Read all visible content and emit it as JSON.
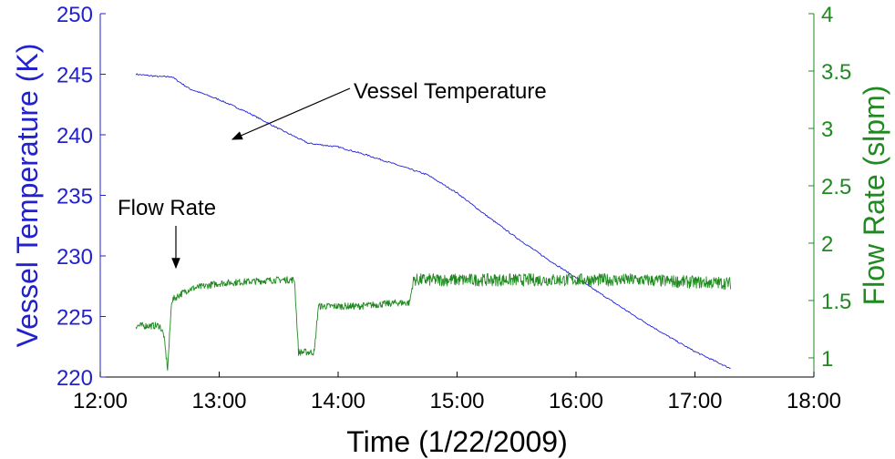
{
  "colors": {
    "temperature": "#1f1fd6",
    "flow": "#1f8a1f",
    "axis_left": "#2222cc",
    "axis_right": "#1f8a1f",
    "axis_bottom": "#000000"
  },
  "chart_data": {
    "type": "line",
    "xlabel": "Time (1/22/2009)",
    "ylabel_left": "Vessel Temperature (K)",
    "ylabel_right": "Flow Rate (slpm)",
    "xlim": [
      "12:00",
      "18:00"
    ],
    "ylim_left": [
      220,
      250
    ],
    "ylim_right": [
      0.833,
      4
    ],
    "x_ticks": [
      "12:00",
      "13:00",
      "14:00",
      "15:00",
      "16:00",
      "17:00",
      "18:00"
    ],
    "y_ticks_left": [
      "220",
      "225",
      "230",
      "235",
      "240",
      "245",
      "250"
    ],
    "y_ticks_right": [
      "1",
      "1.5",
      "2",
      "2.5",
      "3",
      "3.5",
      "4"
    ],
    "grid": false,
    "series": [
      {
        "name": "Vessel Temperature",
        "axis": "left",
        "x": [
          "12:18",
          "12:30",
          "12:36",
          "12:45",
          "13:00",
          "13:15",
          "13:30",
          "13:45",
          "14:00",
          "14:15",
          "14:30",
          "14:45",
          "15:00",
          "15:15",
          "15:30",
          "15:45",
          "16:00",
          "16:15",
          "16:30",
          "16:45",
          "17:00",
          "17:18"
        ],
        "values": [
          245.0,
          244.8,
          244.8,
          243.8,
          242.9,
          241.8,
          240.5,
          239.3,
          239.0,
          238.3,
          237.5,
          236.7,
          235.2,
          233.3,
          231.5,
          229.8,
          228.2,
          226.6,
          225.0,
          223.5,
          222.1,
          220.7
        ]
      },
      {
        "name": "Flow Rate",
        "axis": "right",
        "x": [
          "12:18",
          "12:30",
          "12:32",
          "12:34",
          "12:36",
          "12:40",
          "12:45",
          "13:00",
          "13:30",
          "13:38",
          "13:40",
          "13:48",
          "13:50",
          "14:10",
          "14:30",
          "14:36",
          "14:38",
          "15:00",
          "15:30",
          "16:00",
          "16:30",
          "17:00",
          "17:18"
        ],
        "values": [
          1.28,
          1.28,
          1.2,
          0.9,
          1.5,
          1.55,
          1.6,
          1.65,
          1.68,
          1.68,
          1.05,
          1.05,
          1.45,
          1.45,
          1.48,
          1.48,
          1.68,
          1.68,
          1.68,
          1.68,
          1.68,
          1.66,
          1.65
        ]
      }
    ],
    "annotations": [
      {
        "text": "Vessel Temperature",
        "target": "Vessel Temperature"
      },
      {
        "text": "Flow Rate",
        "target": "Flow Rate"
      }
    ]
  }
}
